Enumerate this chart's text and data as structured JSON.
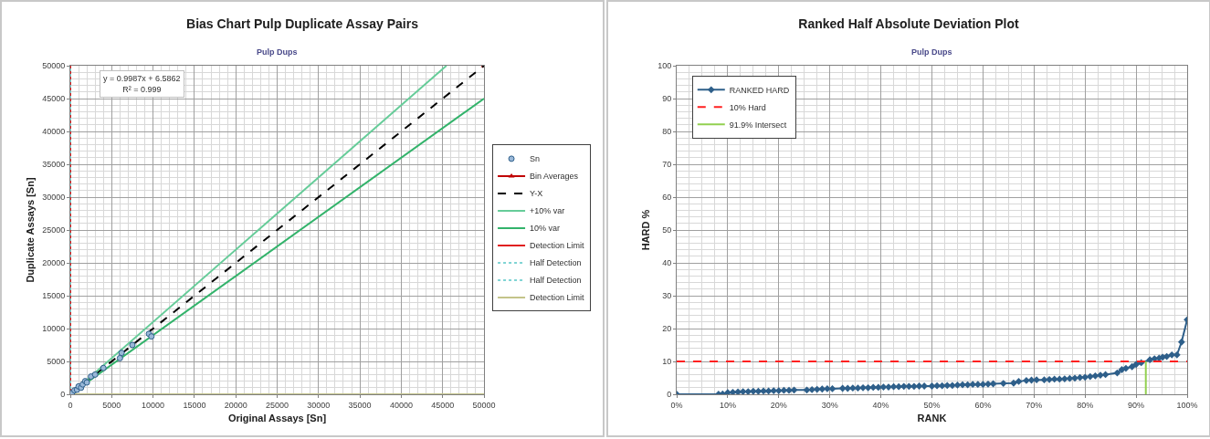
{
  "chart_data": [
    {
      "type": "scatter",
      "title": "Bias Chart Pulp Duplicate Assay Pairs",
      "subtitle": "Pulp Dups",
      "xlabel": "Original Assays [Sn]",
      "ylabel": "Duplicate Assays [Sn]",
      "annotations": [
        "y = 0.9987x + 6.5862",
        "R² = 0.999"
      ],
      "xlim": [
        0,
        50000
      ],
      "xticks": [
        0,
        5000,
        10000,
        15000,
        20000,
        25000,
        30000,
        35000,
        40000,
        45000,
        50000
      ],
      "ylim": [
        0,
        50000
      ],
      "yticks": [
        0,
        5000,
        10000,
        15000,
        20000,
        25000,
        30000,
        35000,
        40000,
        45000,
        50000
      ],
      "grid": true,
      "legend": "right",
      "series": [
        {
          "name": "Sn",
          "marker": "circle",
          "color": "#2e5f8a",
          "x": [
            200,
            500,
            800,
            1000,
            1300,
            1500,
            1800,
            2000,
            2500,
            3000,
            4000,
            6000,
            6200,
            7500,
            9500,
            9800
          ],
          "values": [
            200,
            600,
            700,
            1200,
            1000,
            1500,
            2000,
            1800,
            2700,
            3000,
            4000,
            5500,
            6300,
            7500,
            9200,
            8800
          ]
        },
        {
          "name": "Bin Averages",
          "type": "line",
          "marker": "triangle",
          "line_style": "solid",
          "color": "#c00000",
          "x": [
            50000
          ],
          "values": [
            50000
          ]
        },
        {
          "name": "Y-X",
          "type": "line",
          "marker": "none",
          "line_style": "dashed",
          "color": "#000000",
          "x": [
            0,
            50000
          ],
          "values": [
            0,
            50000
          ]
        },
        {
          "name": "+10% var",
          "type": "line",
          "marker": "none",
          "line_style": "solid",
          "color": "#66cc99",
          "x": [
            0,
            45455
          ],
          "values": [
            0,
            50000
          ]
        },
        {
          "name": "10% var",
          "type": "line",
          "marker": "none",
          "line_style": "solid",
          "color": "#33b36b",
          "x": [
            0,
            50000
          ],
          "values": [
            0,
            45000
          ]
        },
        {
          "name": "Detection Limit",
          "type": "line",
          "marker": "none",
          "line_style": "solid",
          "color": "#e02020",
          "x": [
            0,
            0
          ],
          "values": [
            0,
            50000
          ]
        },
        {
          "name": "Half Detection",
          "type": "line",
          "marker": "none",
          "line_style": "dotted",
          "color": "#7fd4d4",
          "x": [
            0,
            0
          ],
          "values": [
            0,
            50000
          ]
        },
        {
          "name": "Half Detection",
          "type": "line",
          "marker": "none",
          "line_style": "dotted",
          "color": "#7fd4d4",
          "values": [
            null
          ]
        },
        {
          "name": "Detection Limit",
          "type": "line",
          "marker": "none",
          "line_style": "solid",
          "color": "#c4c48a",
          "x": [
            0,
            50000
          ],
          "values": [
            0,
            0
          ]
        }
      ]
    },
    {
      "type": "line",
      "title": "Ranked Half Absolute Deviation Plot",
      "subtitle": "Pulp Dups",
      "xlabel": "RANK",
      "ylabel": "HARD %",
      "xlim": [
        0,
        100
      ],
      "xticks": [
        {
          "value": 0,
          "label": "0%"
        },
        {
          "value": 10,
          "label": "10%"
        },
        {
          "value": 20,
          "label": "20%"
        },
        {
          "value": 30,
          "label": "30%"
        },
        {
          "value": 40,
          "label": "40%"
        },
        {
          "value": 50,
          "label": "50%"
        },
        {
          "value": 60,
          "label": "60%"
        },
        {
          "value": 70,
          "label": "70%"
        },
        {
          "value": 80,
          "label": "80%"
        },
        {
          "value": 90,
          "label": "90%"
        },
        {
          "value": 100,
          "label": "100%"
        }
      ],
      "ylim": [
        0,
        100
      ],
      "yticks": [
        0,
        10,
        20,
        30,
        40,
        50,
        60,
        70,
        80,
        90,
        100
      ],
      "grid": true,
      "legend": "top left",
      "series": [
        {
          "name": "RANKED HARD",
          "marker": "diamond",
          "line_style": "solid",
          "color": "#2e5f8a",
          "x": [
            0,
            8.2,
            9,
            10,
            11,
            12,
            13,
            14,
            15,
            16,
            17,
            18,
            19,
            20,
            21,
            22,
            23,
            25.5,
            26.5,
            27.5,
            28.5,
            29.5,
            30.5,
            32.5,
            33.5,
            34.5,
            35.5,
            36.5,
            37.5,
            38.5,
            39.5,
            40.5,
            41.5,
            42.5,
            43.5,
            44.5,
            45.5,
            46.5,
            47.5,
            48.5,
            50,
            51,
            52,
            53,
            54,
            55,
            56,
            57,
            58,
            59,
            60,
            61,
            62,
            64,
            66,
            67,
            68.5,
            69.5,
            70.5,
            72,
            73,
            74,
            75,
            76,
            77,
            78,
            79,
            80,
            81,
            82,
            83,
            84,
            86.3,
            87.2,
            88,
            89.2,
            90,
            91,
            92.7,
            93.6,
            94.5,
            95.2,
            96,
            97,
            98,
            98.9,
            100
          ],
          "values": [
            0,
            0,
            0.1,
            0.5,
            0.6,
            0.7,
            0.8,
            0.8,
            0.9,
            0.9,
            1.0,
            1.0,
            1.1,
            1.1,
            1.2,
            1.2,
            1.3,
            1.3,
            1.4,
            1.5,
            1.6,
            1.7,
            1.7,
            1.8,
            1.8,
            1.9,
            1.9,
            2.0,
            2.0,
            2.1,
            2.1,
            2.2,
            2.2,
            2.3,
            2.3,
            2.4,
            2.4,
            2.4,
            2.5,
            2.5,
            2.5,
            2.6,
            2.6,
            2.7,
            2.7,
            2.8,
            2.9,
            2.9,
            3.0,
            3.0,
            3.0,
            3.1,
            3.2,
            3.3,
            3.4,
            3.9,
            4.2,
            4.3,
            4.4,
            4.4,
            4.5,
            4.6,
            4.6,
            4.7,
            4.8,
            4.9,
            5.1,
            5.2,
            5.4,
            5.6,
            5.8,
            6.0,
            6.5,
            7.5,
            7.9,
            8.4,
            9.1,
            9.6,
            10.5,
            10.8,
            11.0,
            11.3,
            11.5,
            12.0,
            12.0,
            15.9,
            22.7
          ]
        },
        {
          "name": "10% Hard",
          "marker": "none",
          "line_style": "dashed",
          "color": "#ff2020",
          "x": [
            0,
            100
          ],
          "values": [
            10,
            10
          ]
        },
        {
          "name": "91.9% Intersect",
          "marker": "none",
          "line_style": "solid",
          "color": "#92d050",
          "x": [
            91.9,
            91.9
          ],
          "values": [
            0,
            10
          ]
        }
      ]
    }
  ]
}
